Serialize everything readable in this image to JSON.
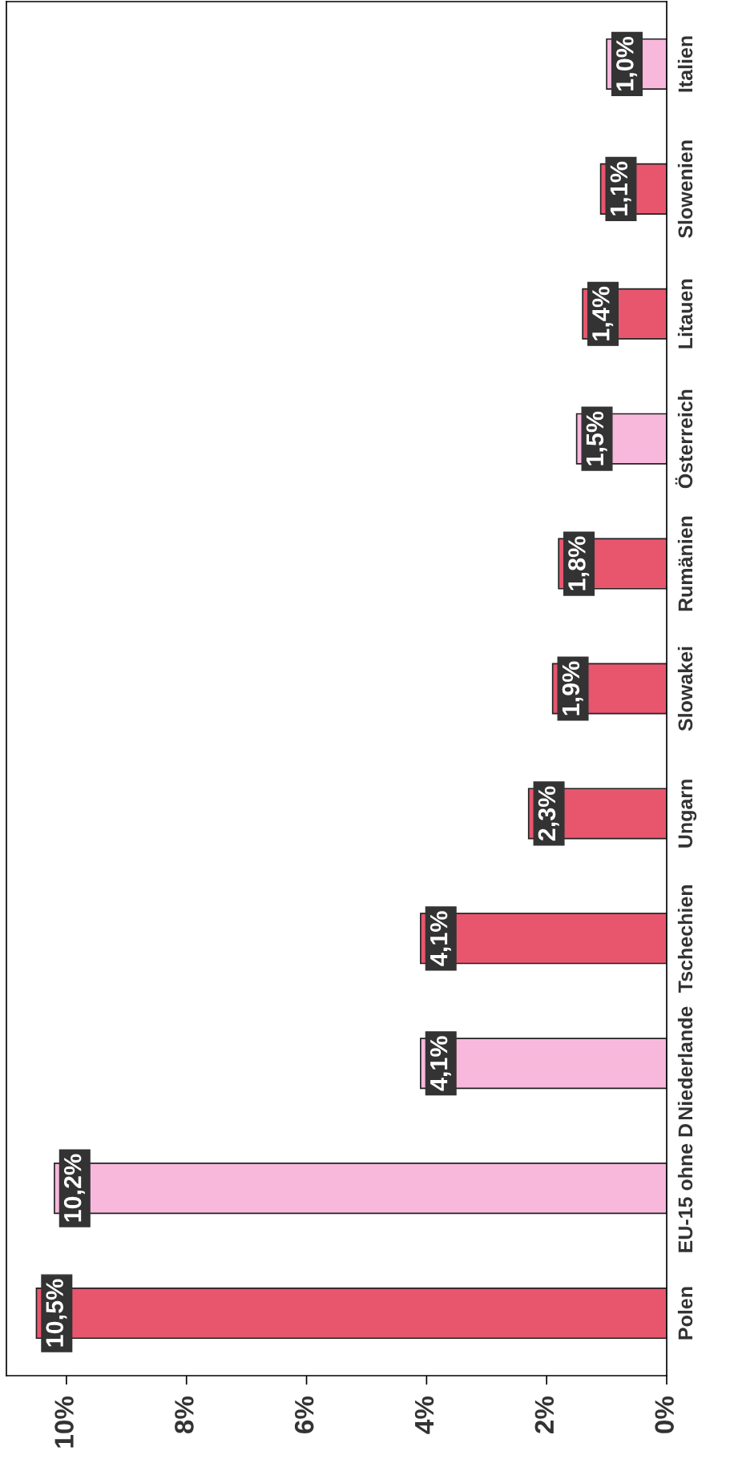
{
  "chart_data": {
    "type": "bar",
    "orientation": "horizontal",
    "categories": [
      "Italien",
      "Slowenien",
      "Litauen",
      "Österreich",
      "Rumänien",
      "Slowakei",
      "Ungarn",
      "Tschechien",
      "Niederlande",
      "EU-15 ohne D",
      "Polen"
    ],
    "values": [
      1.0,
      1.1,
      1.4,
      1.5,
      1.8,
      1.9,
      2.3,
      4.1,
      4.1,
      10.2,
      10.5
    ],
    "colors": [
      "#f7b8dc",
      "#e8566e",
      "#e8566e",
      "#f7b8dc",
      "#e8566e",
      "#e8566e",
      "#e8566e",
      "#e8566e",
      "#f7b8dc",
      "#f7b8dc",
      "#e8566e"
    ],
    "value_labels": [
      "1,0%",
      "1,1%",
      "1,4%",
      "1,5%",
      "1,8%",
      "1,9%",
      "2,3%",
      "4,1%",
      "4,1%",
      "10,2%",
      "10,5%"
    ],
    "xlim": [
      11.0,
      0
    ],
    "xticks": [
      {
        "value": 10,
        "label": "10%"
      },
      {
        "value": 8,
        "label": "8%"
      },
      {
        "value": 6,
        "label": "6%"
      },
      {
        "value": 4,
        "label": "4%"
      },
      {
        "value": 2,
        "label": "2%"
      },
      {
        "value": 0,
        "label": "0%"
      }
    ],
    "grid": false,
    "legend": false
  }
}
